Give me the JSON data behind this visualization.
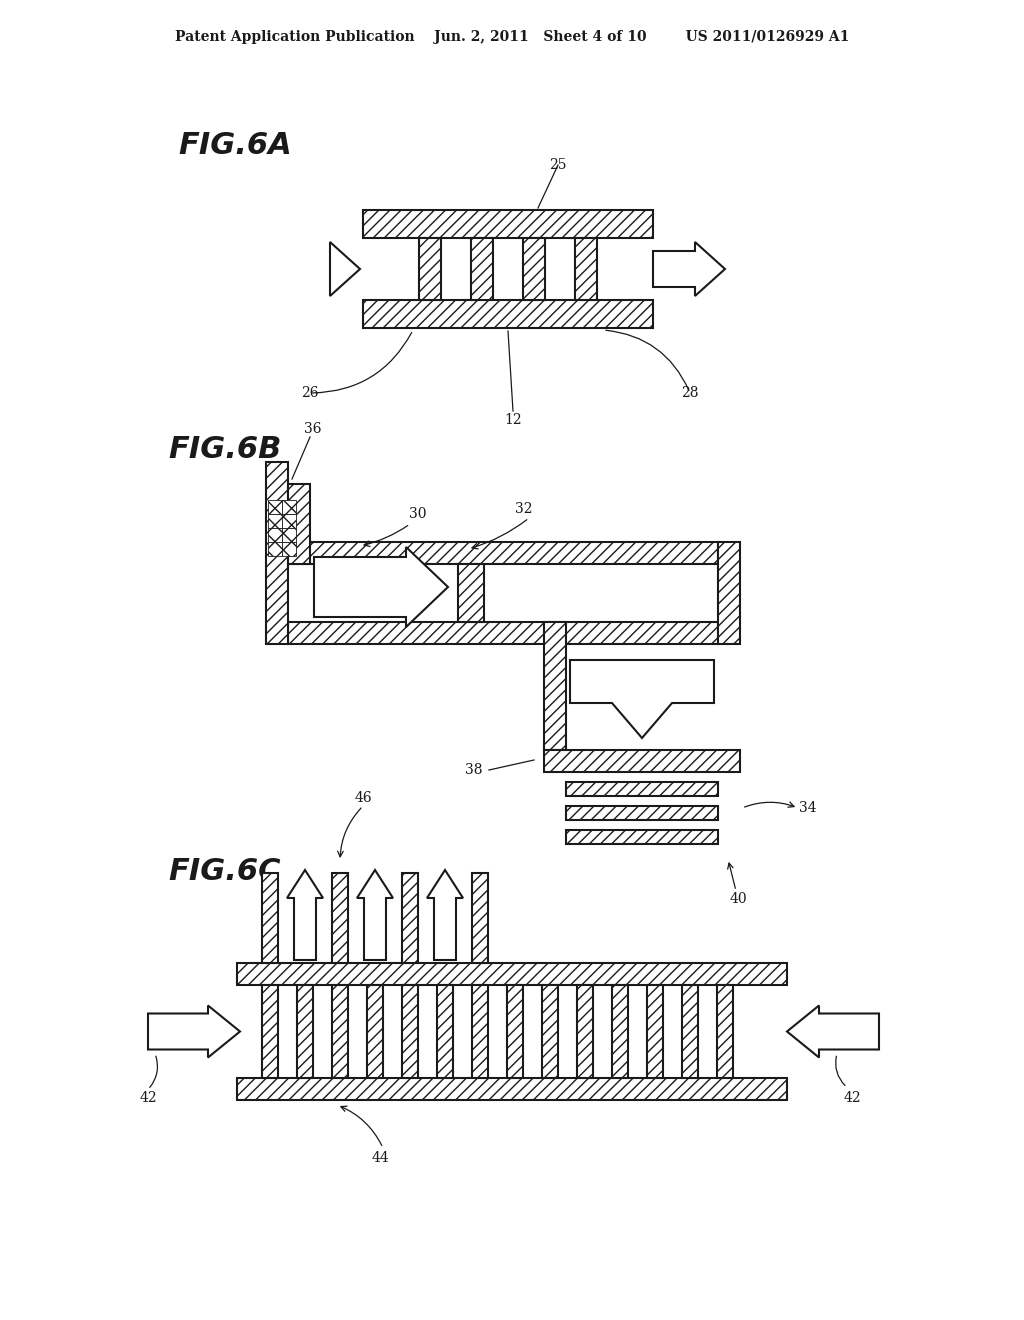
{
  "bg_color": "#ffffff",
  "header_text": "Patent Application Publication    Jun. 2, 2011   Sheet 4 of 10        US 2011/0126929 A1",
  "fig6a_label": "FIG.6A",
  "fig6b_label": "FIG.6B",
  "fig6c_label": "FIG.6C",
  "line_color": "#1a1a1a",
  "hatch_color": "#1a1a1a"
}
